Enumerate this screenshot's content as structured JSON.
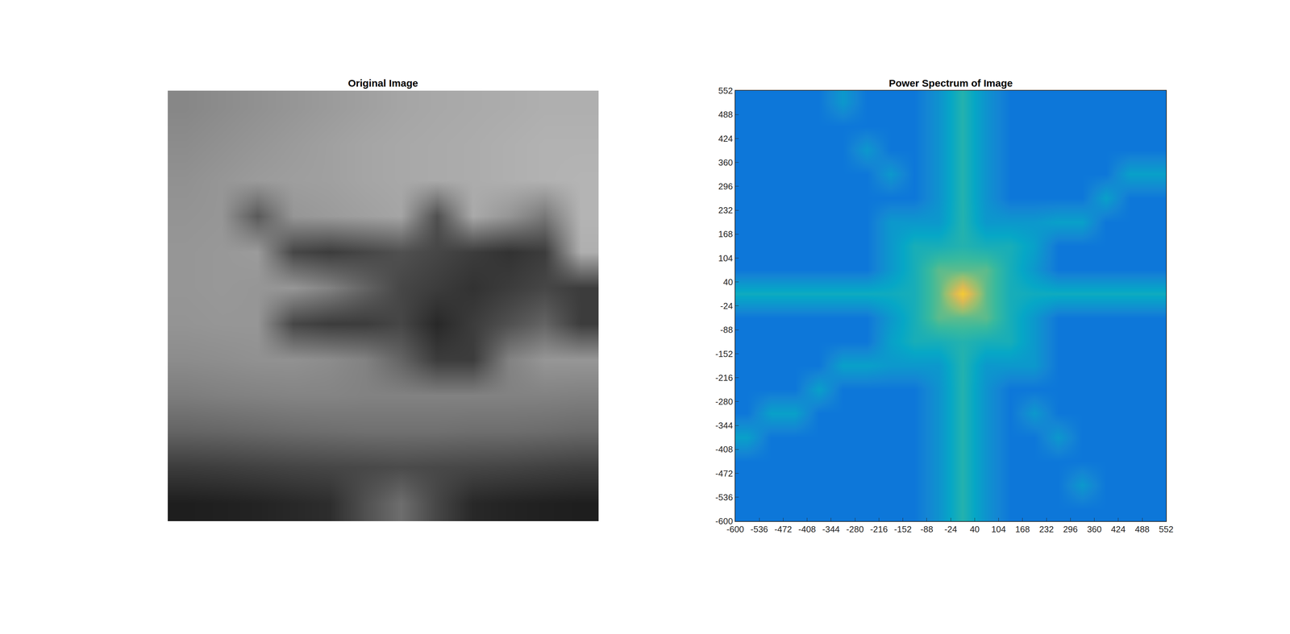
{
  "chart_data": [
    {
      "type": "image",
      "title": "Original Image",
      "tick_labels": false,
      "clim": [
        0,
        255
      ],
      "cells": [
        [
          135,
          140,
          145,
          150,
          155,
          160,
          165,
          168,
          170,
          172,
          175,
          175
        ],
        [
          140,
          145,
          150,
          155,
          160,
          165,
          168,
          170,
          172,
          175,
          178,
          178
        ],
        [
          145,
          150,
          155,
          158,
          160,
          165,
          168,
          170,
          172,
          175,
          178,
          180
        ],
        [
          148,
          150,
          90,
          150,
          155,
          160,
          165,
          80,
          170,
          150,
          120,
          180
        ],
        [
          150,
          152,
          155,
          70,
          60,
          70,
          80,
          70,
          60,
          50,
          60,
          175
        ],
        [
          150,
          152,
          150,
          150,
          130,
          100,
          70,
          60,
          50,
          60,
          70,
          60
        ],
        [
          148,
          150,
          150,
          70,
          60,
          60,
          70,
          40,
          60,
          80,
          100,
          60
        ],
        [
          140,
          142,
          145,
          145,
          140,
          130,
          100,
          60,
          60,
          130,
          150,
          150
        ],
        [
          125,
          128,
          130,
          132,
          132,
          130,
          130,
          130,
          130,
          130,
          130,
          128
        ],
        [
          100,
          102,
          105,
          108,
          110,
          112,
          112,
          112,
          110,
          110,
          108,
          105
        ],
        [
          60,
          62,
          65,
          68,
          70,
          72,
          75,
          72,
          70,
          68,
          65,
          62
        ],
        [
          30,
          32,
          35,
          40,
          45,
          80,
          110,
          70,
          40,
          35,
          32,
          30
        ]
      ]
    },
    {
      "type": "heatmap",
      "title": "Power Spectrum of Image",
      "xlim": [
        -600,
        552
      ],
      "ylim": [
        -600,
        552
      ],
      "xticks": [
        -600,
        -536,
        -472,
        -408,
        -344,
        -280,
        -216,
        -152,
        -88,
        -24,
        40,
        104,
        168,
        232,
        296,
        360,
        424,
        488,
        552
      ],
      "yticks": [
        -600,
        -536,
        -472,
        -408,
        -344,
        -280,
        -216,
        -152,
        -88,
        -24,
        40,
        104,
        168,
        232,
        296,
        360,
        424,
        488,
        552
      ],
      "x": [
        -568,
        -504,
        -440,
        -376,
        -312,
        -248,
        -184,
        -120,
        -56,
        8,
        72,
        136,
        200,
        264,
        328,
        392,
        456,
        520
      ],
      "y": [
        -568,
        -504,
        -440,
        -376,
        -312,
        -248,
        -184,
        -120,
        -56,
        8,
        72,
        136,
        200,
        264,
        328,
        392,
        456,
        520
      ],
      "clim": [
        0,
        10
      ],
      "cells": [
        [
          2,
          2,
          2,
          2,
          2,
          2,
          2,
          2,
          3,
          4.5,
          3,
          2,
          2,
          2,
          2,
          2,
          2,
          2
        ],
        [
          2,
          2,
          2,
          2,
          2,
          2,
          2,
          2,
          3,
          4.5,
          3,
          2,
          2,
          2,
          3.2,
          2,
          2,
          2
        ],
        [
          2,
          2,
          2,
          2,
          2,
          2,
          2,
          2,
          3,
          4.5,
          3,
          2,
          2,
          2,
          2,
          2,
          2,
          2
        ],
        [
          3.5,
          2,
          2,
          2,
          2,
          2,
          2,
          2,
          3,
          4.5,
          3,
          2,
          2,
          3.2,
          2,
          2,
          2,
          2
        ],
        [
          2,
          3.5,
          3.5,
          2,
          2,
          2,
          2,
          2,
          3,
          4.5,
          3,
          2,
          3.2,
          2,
          2,
          2,
          2,
          2
        ],
        [
          2,
          2,
          2,
          3.5,
          2,
          2,
          2,
          2,
          3,
          4.5,
          3,
          2,
          2,
          2,
          2,
          2,
          2,
          2
        ],
        [
          2,
          2,
          2,
          2,
          3.5,
          3.5,
          3.2,
          3.2,
          3.2,
          4.5,
          3.2,
          3.2,
          3.2,
          2,
          2,
          2,
          2,
          2
        ],
        [
          2,
          2,
          2,
          2,
          2,
          2,
          3.5,
          4.2,
          4.2,
          4.5,
          4.2,
          4.2,
          3.2,
          2,
          2,
          2,
          2,
          2
        ],
        [
          2,
          2,
          2,
          2,
          2,
          2,
          3.2,
          4.2,
          5.5,
          5.5,
          5.5,
          4.2,
          3.2,
          2,
          2,
          2,
          2,
          2
        ],
        [
          4,
          4,
          4,
          4,
          4,
          4,
          4,
          4.2,
          5.5,
          8.5,
          5.5,
          4.2,
          4,
          4,
          4,
          4,
          4,
          4
        ],
        [
          2,
          2,
          2,
          2,
          2,
          2,
          3.2,
          4.2,
          5.5,
          5.5,
          5.5,
          4.2,
          3.2,
          2,
          2,
          2,
          2,
          2
        ],
        [
          2,
          2,
          2,
          2,
          2,
          2,
          3.2,
          4.2,
          4.2,
          4.5,
          4.2,
          4.2,
          3.5,
          2,
          2,
          2,
          2,
          2
        ],
        [
          2,
          2,
          2,
          2,
          2,
          2,
          3.2,
          3.2,
          3.2,
          4.5,
          3.2,
          3.2,
          3.2,
          3.5,
          3.5,
          2,
          2,
          2
        ],
        [
          2,
          2,
          2,
          2,
          2,
          2,
          2,
          2,
          3,
          4.5,
          3,
          2,
          2,
          2,
          2,
          3.5,
          2,
          2
        ],
        [
          2,
          2,
          2,
          2,
          2,
          2,
          3.2,
          2,
          3,
          4.5,
          3,
          2,
          2,
          2,
          2,
          2,
          3.5,
          3.5
        ],
        [
          2,
          2,
          2,
          2,
          2,
          3.2,
          2,
          2,
          3,
          4.5,
          3,
          2,
          2,
          2,
          2,
          2,
          2,
          2
        ],
        [
          2,
          2,
          2,
          2,
          2,
          2,
          2,
          2,
          3,
          4.5,
          3,
          2,
          2,
          2,
          2,
          2,
          2,
          2
        ],
        [
          2,
          2,
          2,
          2,
          3.2,
          2,
          2,
          2,
          3,
          4.5,
          3,
          2,
          2,
          2,
          2,
          2,
          2,
          2
        ]
      ]
    }
  ]
}
